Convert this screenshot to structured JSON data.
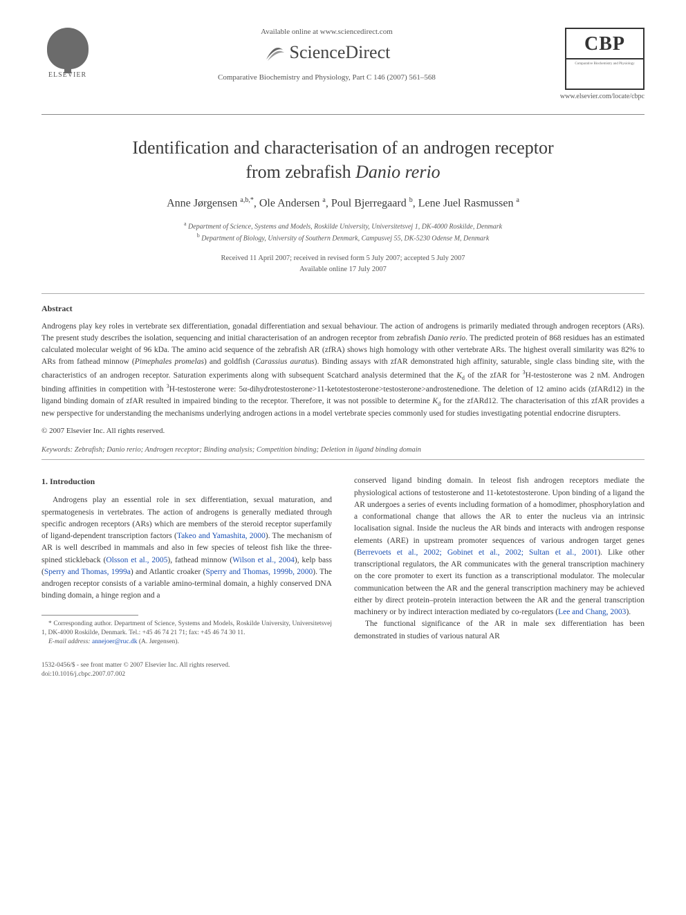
{
  "header": {
    "elsevier_label": "ELSEVIER",
    "available_online": "Available online at www.sciencedirect.com",
    "sciencedirect": "ScienceDirect",
    "journal_ref": "Comparative Biochemistry and Physiology, Part C 146 (2007) 561–568",
    "cbp_abbrev": "CBP",
    "cbp_sub": "Comparative Biochemistry and Physiology",
    "journal_url": "www.elsevier.com/locate/cbpc",
    "colors": {
      "text": "#3a3a3a",
      "muted": "#555555",
      "link": "#1a4fb3",
      "rule": "#888888",
      "logo_gray": "#6b6b6b",
      "box_border": "#333333"
    }
  },
  "title_line1": "Identification and characterisation of an androgen receptor",
  "title_line2_pre": "from zebrafish ",
  "title_line2_ital": "Danio rerio",
  "authors_html": "Anne Jørgensen <sup>a,b,*</sup>, Ole Andersen <sup>a</sup>, Poul Bjerregaard <sup>b</sup>, Lene Juel Rasmussen <sup>a</sup>",
  "affiliations": {
    "a": "Department of Science, Systems and Models, Roskilde University, Universitetsvej 1, DK-4000 Roskilde, Denmark",
    "b": "Department of Biology, University of Southern Denmark, Campusvej 55, DK-5230 Odense M, Denmark"
  },
  "dates": {
    "received": "Received 11 April 2007; received in revised form 5 July 2007; accepted 5 July 2007",
    "online": "Available online 17 July 2007"
  },
  "abstract_heading": "Abstract",
  "abstract_body": "Androgens play key roles in vertebrate sex differentiation, gonadal differentiation and sexual behaviour. The action of androgens is primarily mediated through androgen receptors (ARs). The present study describes the isolation, sequencing and initial characterisation of an androgen receptor from zebrafish <span class=\"italic\">Danio rerio</span>. The predicted protein of 868 residues has an estimated calculated molecular weight of 96 kDa. The amino acid sequence of the zebrafish AR (zfRA) shows high homology with other vertebrate ARs. The highest overall similarity was 82% to ARs from fathead minnow (<span class=\"italic\">Pimephales promelas</span>) and goldfish (<span class=\"italic\">Carassius auratus</span>). Binding assays with zfAR demonstrated high affinity, saturable, single class binding site, with the characteristics of an androgen receptor. Saturation experiments along with subsequent Scatchard analysis determined that the <span class=\"italic\">K</span><sub>d</sub> of the zfAR for <sup>3</sup>H-testosterone was 2 nM. Androgen binding affinities in competition with <sup>3</sup>H-testosterone were: 5α-dihydrotestosterone&gt;11-ketotestosterone&gt;testosterone&gt;androstenedione. The deletion of 12 amino acids (zfARd12) in the ligand binding domain of zfAR resulted in impaired binding to the receptor. Therefore, it was not possible to determine <span class=\"italic\">K</span><sub>d</sub> for the zfARd12. The characterisation of this zfAR provides a new perspective for understanding the mechanisms underlying androgen actions in a model vertebrate species commonly used for studies investigating potential endocrine disrupters.",
  "copyright": "© 2007 Elsevier Inc. All rights reserved.",
  "keywords_label": "Keywords:",
  "keywords_text": " Zebrafish; Danio rerio; Androgen receptor; Binding analysis; Competition binding; Deletion in ligand binding domain",
  "section1_heading": "1. Introduction",
  "col_left_p1": "Androgens play an essential role in sex differentiation, sexual maturation, and spermatogenesis in vertebrates. The action of androgens is generally mediated through specific androgen receptors (ARs) which are members of the steroid receptor superfamily of ligand-dependent transcription factors (<span class=\"ref-link\">Takeo and Yamashita, 2000</span>). The mechanism of AR is well described in mammals and also in few species of teleost fish like the three-spined stickleback (<span class=\"ref-link\">Olsson et al., 2005</span>), fathead minnow (<span class=\"ref-link\">Wilson et al., 2004</span>), kelp bass (<span class=\"ref-link\">Sperry and Thomas, 1999a</span>) and Atlantic croaker (<span class=\"ref-link\">Sperry and Thomas, 1999b, 2000</span>). The androgen receptor consists of a variable amino-terminal domain, a highly conserved DNA binding domain, a hinge region and a",
  "col_right_p1": "conserved ligand binding domain. In teleost fish androgen receptors mediate the physiological actions of testosterone and 11-ketotestosterone. Upon binding of a ligand the AR undergoes a series of events including formation of a homodimer, phosphorylation and a conformational change that allows the AR to enter the nucleus via an intrinsic localisation signal. Inside the nucleus the AR binds and interacts with androgen response elements (ARE) in upstream promoter sequences of various androgen target genes (<span class=\"ref-link\">Berrevoets et al., 2002; Gobinet et al., 2002; Sultan et al., 2001</span>). Like other transcriptional regulators, the AR communicates with the general transcription machinery on the core promoter to exert its function as a transcriptional modulator. The molecular communication between the AR and the general transcription machinery may be achieved either by direct protein–protein interaction between the AR and the general transcription machinery or by indirect interaction mediated by co-regulators (<span class=\"ref-link\">Lee and Chang, 2003</span>).",
  "col_right_p2": "The functional significance of the AR in male sex differentiation has been demonstrated in studies of various natural AR",
  "footnote": {
    "corr": "* Corresponding author. Department of Science, Systems and Models, Roskilde University, Universitetsvej 1, DK-4000 Roskilde, Denmark. Tel.: +45 46 74 21 71; fax: +45 46 74 30 11.",
    "email_label": "E-mail address:",
    "email": "annejoer@ruc.dk",
    "email_tail": " (A. Jørgensen)."
  },
  "bottom": {
    "issn": "1532-0456/$ - see front matter © 2007 Elsevier Inc. All rights reserved.",
    "doi": "doi:10.1016/j.cbpc.2007.07.002"
  },
  "typography": {
    "title_fontsize_pt": 20,
    "body_fontsize_pt": 9,
    "footnote_fontsize_pt": 7
  }
}
